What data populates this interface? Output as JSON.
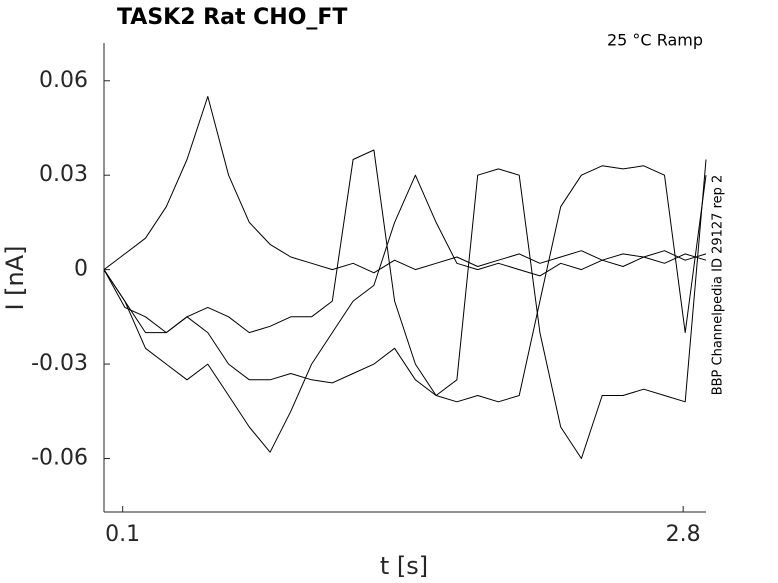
{
  "chart_data": {
    "type": "line",
    "title": "TASK2  Rat  CHO_FT",
    "annotation": "25 °C  Ramp",
    "side_note": "BBP Channelpedia ID 29127 rep 2",
    "x_label": "t [s]",
    "y_label": "I [nA]",
    "xlim": [
      0.01,
      2.91
    ],
    "ylim": [
      -0.077,
      0.072
    ],
    "xticks": [
      0.1,
      2.8
    ],
    "yticks": [
      -0.06,
      -0.03,
      0,
      0.03,
      0.06
    ],
    "x": [
      0.01,
      0.11,
      0.21,
      0.31,
      0.41,
      0.51,
      0.61,
      0.71,
      0.81,
      0.91,
      1.01,
      1.11,
      1.21,
      1.31,
      1.41,
      1.51,
      1.61,
      1.71,
      1.81,
      1.91,
      2.01,
      2.11,
      2.21,
      2.31,
      2.41,
      2.51,
      2.61,
      2.71,
      2.81,
      2.91
    ],
    "series": [
      {
        "color": "#000000",
        "values": [
          0,
          0.005,
          0.01,
          0.02,
          0.035,
          0.055,
          0.03,
          0.015,
          0.008,
          0.004,
          0.002,
          0,
          0.002,
          -0.001,
          0.003,
          0,
          0.002,
          0.004,
          0.001,
          0.003,
          0.005,
          0.002,
          0.004,
          0.006,
          0.003,
          0.005,
          0.004,
          0.006,
          0.003,
          0.005
        ]
      },
      {
        "color": "#000000",
        "values": [
          0,
          -0.01,
          -0.025,
          -0.03,
          -0.035,
          -0.03,
          -0.04,
          -0.05,
          -0.058,
          -0.045,
          -0.03,
          -0.02,
          -0.01,
          -0.005,
          0.015,
          0.03,
          0.015,
          0.002,
          0,
          0.002,
          0,
          -0.002,
          0.002,
          0,
          0.003,
          0.001,
          0.004,
          0.002,
          0.005,
          0.003
        ]
      },
      {
        "color": "#000000",
        "values": [
          0,
          -0.01,
          -0.02,
          -0.02,
          -0.015,
          -0.02,
          -0.03,
          -0.035,
          -0.035,
          -0.033,
          -0.035,
          -0.036,
          -0.033,
          -0.03,
          -0.025,
          -0.035,
          -0.04,
          -0.042,
          -0.04,
          -0.042,
          -0.04,
          -0.01,
          0.02,
          0.03,
          0.033,
          0.032,
          0.033,
          0.03,
          -0.02,
          0.03
        ]
      },
      {
        "color": "#000000",
        "values": [
          0,
          -0.012,
          -0.015,
          -0.02,
          -0.015,
          -0.012,
          -0.015,
          -0.02,
          -0.018,
          -0.015,
          -0.015,
          -0.01,
          0.035,
          0.038,
          -0.01,
          -0.03,
          -0.04,
          -0.035,
          0.03,
          0.032,
          0.03,
          -0.02,
          -0.05,
          -0.06,
          -0.04,
          -0.04,
          -0.038,
          -0.04,
          -0.042,
          0.035
        ]
      }
    ]
  }
}
